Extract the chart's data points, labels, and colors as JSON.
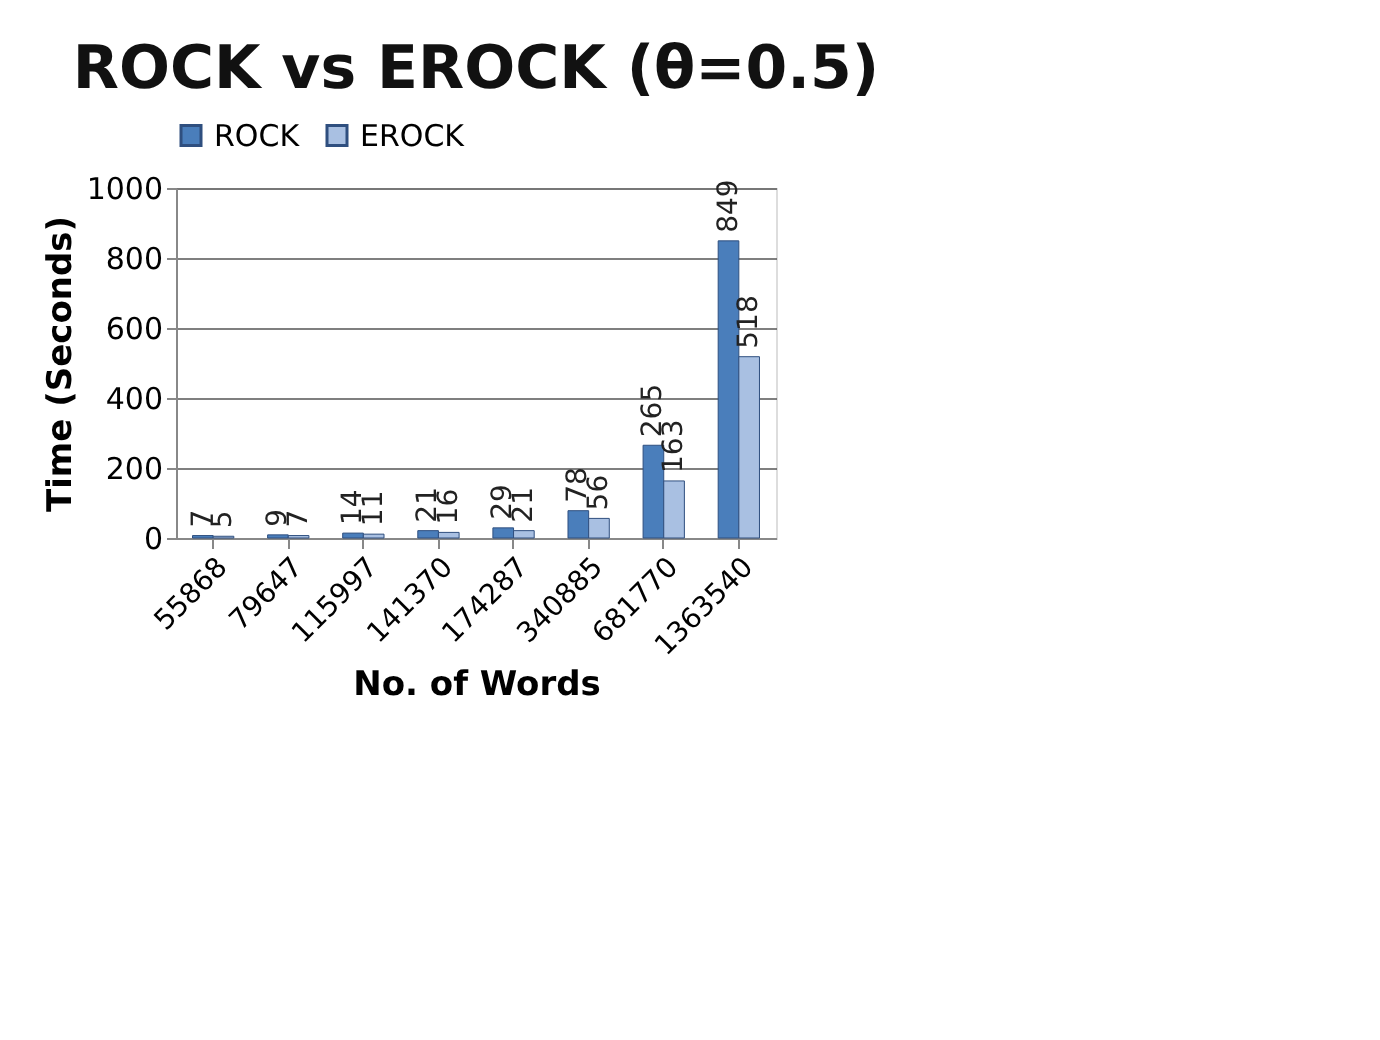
{
  "chart_data": {
    "type": "bar",
    "title": "ROCK vs EROCK (θ=0.5)",
    "xlabel": "No. of Words",
    "ylabel": "Time (Seconds)",
    "categories": [
      "55868",
      "79647",
      "115997",
      "141370",
      "174287",
      "340885",
      "681770",
      "1363540"
    ],
    "series": [
      {
        "name": "ROCK",
        "color": "#4a7ebb",
        "values": [
          7,
          9,
          14,
          21,
          29,
          78,
          265,
          849
        ]
      },
      {
        "name": "EROCK",
        "color": "#a9c0e2",
        "values": [
          5,
          7,
          11,
          16,
          21,
          56,
          163,
          518
        ]
      }
    ],
    "ylim": [
      0,
      1000
    ],
    "yticks": [
      0,
      200,
      400,
      600,
      800,
      1000
    ],
    "grid": "y",
    "legend": "top",
    "data_labels": true
  }
}
